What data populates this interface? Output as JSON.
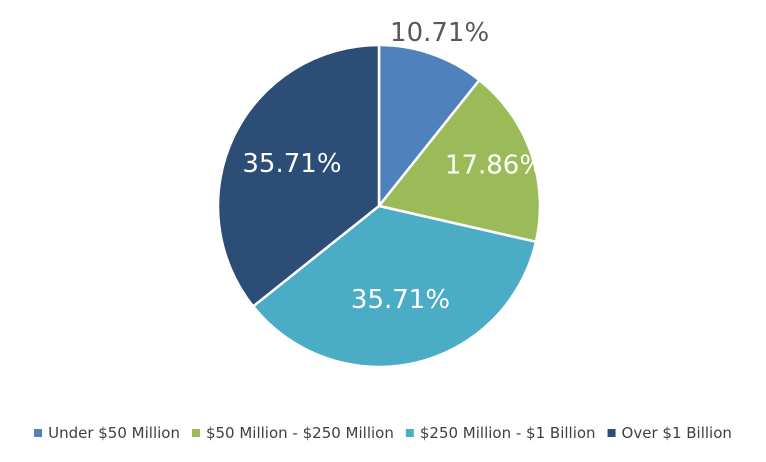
{
  "chart_data": {
    "type": "pie",
    "title": "",
    "categories": [
      "Under $50 Million",
      "$50 Million - $250 Million",
      "$250 Million - $1 Billion",
      "Over $1 Billion"
    ],
    "values": [
      10.71,
      17.86,
      35.71,
      35.71
    ],
    "data_labels": [
      "10.71%",
      "17.86%",
      "35.71%",
      "35.71%"
    ],
    "colors": [
      "#4f81bd",
      "#9bbb59",
      "#4bacc6",
      "#2c4d75"
    ],
    "label_colors": [
      "#595959",
      "#ffffff",
      "#ffffff",
      "#ffffff"
    ],
    "legend_position": "bottom",
    "start_angle_deg": 0,
    "direction": "clockwise"
  }
}
